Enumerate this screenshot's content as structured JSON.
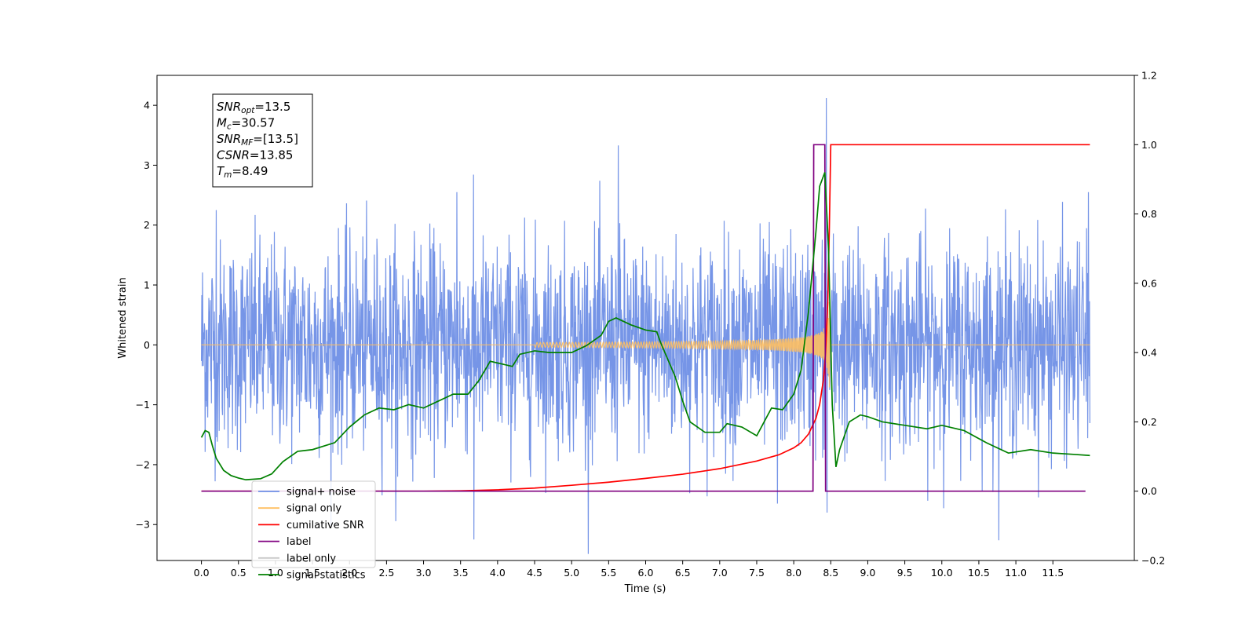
{
  "chart_data": {
    "type": "line",
    "xlabel": "Time (s)",
    "ylabel_left": "Whitened strain",
    "xlim": [
      -0.6,
      12.6
    ],
    "ylim_left": [
      -3.6,
      4.5
    ],
    "ylim_right": [
      -0.2,
      1.2
    ],
    "x_ticks": [
      0.0,
      0.5,
      1.0,
      1.5,
      2.0,
      2.5,
      3.0,
      3.5,
      4.0,
      4.5,
      5.0,
      5.5,
      6.0,
      6.5,
      7.0,
      7.5,
      8.0,
      8.5,
      9.0,
      9.5,
      10.0,
      10.5,
      11.0,
      11.5
    ],
    "x_tick_labels": [
      "0.0",
      "0.5",
      "1.0",
      "1.5",
      "2.0",
      "2.5",
      "3.0",
      "3.5",
      "4.0",
      "4.5",
      "5.0",
      "5.5",
      "6.0",
      "6.5",
      "7.0",
      "7.5",
      "8.0",
      "8.5",
      "9.0",
      "9.5",
      "10.0",
      "10.5",
      "11.0",
      "11.5"
    ],
    "y_left_ticks": [
      -3,
      -2,
      -1,
      0,
      1,
      2,
      3,
      4
    ],
    "y_left_tick_labels": [
      "−3",
      "−2",
      "−1",
      "0",
      "1",
      "2",
      "3",
      "4"
    ],
    "y_right_ticks": [
      -0.2,
      0.0,
      0.2,
      0.4,
      0.6,
      0.8,
      1.0,
      1.2
    ],
    "y_right_tick_labels": [
      "−0.2",
      "0.0",
      "0.2",
      "0.4",
      "0.6",
      "0.8",
      "1.0",
      "1.2"
    ],
    "legend_placement": "lower-left",
    "annotation": {
      "lines": [
        {
          "var": "SNR",
          "sub": "opt",
          "value": "=13.5"
        },
        {
          "var": "M",
          "sub": "c",
          "value": "=30.57"
        },
        {
          "var": "SNR",
          "sub": "MF",
          "value": "=[13.5]"
        },
        {
          "var": "CSNR",
          "sub": "",
          "value": "=13.85"
        },
        {
          "var": "T",
          "sub": "m",
          "value": "=8.49"
        }
      ]
    },
    "series": [
      {
        "name": "signal+ noise",
        "axis": "left",
        "color": "#6f8fe6",
        "kind": "noise",
        "x_range": [
          0.0,
          12.0
        ],
        "typical_amplitude": 1.4,
        "spikes": [
          {
            "x": 5.63,
            "y": 3.33
          },
          {
            "x": 8.44,
            "y": 4.12
          },
          {
            "x": 3.68,
            "y": -3.25
          },
          {
            "x": 8.45,
            "y": -2.8
          },
          {
            "x": 11.98,
            "y": 2.55
          },
          {
            "x": 3.45,
            "y": 2.55
          },
          {
            "x": 2.65,
            "y": -2.2
          },
          {
            "x": 7.78,
            "y": -2.65
          },
          {
            "x": 0.2,
            "y": 2.25
          }
        ]
      },
      {
        "name": "signal only",
        "axis": "left",
        "color": "#ffbf60",
        "kind": "chirp",
        "x_range": [
          0.0,
          12.0
        ],
        "merger_time": 8.49
      },
      {
        "name": "cumilative SNR",
        "axis": "right",
        "color": "#ff0000",
        "points": [
          [
            0.0,
            0.0
          ],
          [
            3.0,
            0.0
          ],
          [
            3.5,
            0.001
          ],
          [
            4.0,
            0.004
          ],
          [
            4.5,
            0.009
          ],
          [
            5.0,
            0.017
          ],
          [
            5.5,
            0.026
          ],
          [
            6.0,
            0.037
          ],
          [
            6.5,
            0.049
          ],
          [
            7.0,
            0.065
          ],
          [
            7.5,
            0.087
          ],
          [
            7.8,
            0.105
          ],
          [
            8.0,
            0.125
          ],
          [
            8.1,
            0.14
          ],
          [
            8.2,
            0.165
          ],
          [
            8.3,
            0.21
          ],
          [
            8.35,
            0.25
          ],
          [
            8.4,
            0.32
          ],
          [
            8.43,
            0.4
          ],
          [
            8.46,
            0.55
          ],
          [
            8.48,
            0.75
          ],
          [
            8.5,
            1.0
          ],
          [
            12.0,
            1.0
          ]
        ]
      },
      {
        "name": "label",
        "axis": "right",
        "color": "#800080",
        "points": [
          [
            0.0,
            0.0
          ],
          [
            8.26,
            0.0
          ],
          [
            8.27,
            1.0
          ],
          [
            8.42,
            1.0
          ],
          [
            8.43,
            0.0
          ],
          [
            8.5,
            0.0
          ],
          [
            8.51,
            -0.0
          ],
          [
            11.94,
            0.0
          ]
        ]
      },
      {
        "name": "label only",
        "legend_only": true,
        "color": "#c8c8c8"
      },
      {
        "name": "signal statistics",
        "axis": "right",
        "color": "#008000",
        "points": [
          [
            0.0,
            0.155
          ],
          [
            0.05,
            0.175
          ],
          [
            0.1,
            0.17
          ],
          [
            0.15,
            0.13
          ],
          [
            0.2,
            0.095
          ],
          [
            0.3,
            0.06
          ],
          [
            0.4,
            0.045
          ],
          [
            0.5,
            0.038
          ],
          [
            0.6,
            0.033
          ],
          [
            0.8,
            0.036
          ],
          [
            0.95,
            0.05
          ],
          [
            1.1,
            0.085
          ],
          [
            1.3,
            0.115
          ],
          [
            1.5,
            0.12
          ],
          [
            1.8,
            0.14
          ],
          [
            2.0,
            0.185
          ],
          [
            2.2,
            0.22
          ],
          [
            2.4,
            0.24
          ],
          [
            2.6,
            0.235
          ],
          [
            2.8,
            0.25
          ],
          [
            3.0,
            0.24
          ],
          [
            3.2,
            0.26
          ],
          [
            3.4,
            0.28
          ],
          [
            3.6,
            0.28
          ],
          [
            3.75,
            0.32
          ],
          [
            3.9,
            0.375
          ],
          [
            4.0,
            0.37
          ],
          [
            4.2,
            0.36
          ],
          [
            4.3,
            0.395
          ],
          [
            4.5,
            0.405
          ],
          [
            4.7,
            0.4
          ],
          [
            5.0,
            0.4
          ],
          [
            5.2,
            0.42
          ],
          [
            5.4,
            0.45
          ],
          [
            5.5,
            0.49
          ],
          [
            5.6,
            0.5
          ],
          [
            5.8,
            0.48
          ],
          [
            6.0,
            0.465
          ],
          [
            6.15,
            0.46
          ],
          [
            6.2,
            0.43
          ],
          [
            6.4,
            0.33
          ],
          [
            6.5,
            0.26
          ],
          [
            6.6,
            0.2
          ],
          [
            6.8,
            0.17
          ],
          [
            7.0,
            0.17
          ],
          [
            7.1,
            0.195
          ],
          [
            7.3,
            0.185
          ],
          [
            7.5,
            0.16
          ],
          [
            7.6,
            0.2
          ],
          [
            7.7,
            0.24
          ],
          [
            7.85,
            0.235
          ],
          [
            8.0,
            0.28
          ],
          [
            8.1,
            0.35
          ],
          [
            8.2,
            0.52
          ],
          [
            8.3,
            0.75
          ],
          [
            8.35,
            0.88
          ],
          [
            8.42,
            0.92
          ],
          [
            8.47,
            0.7
          ],
          [
            8.52,
            0.25
          ],
          [
            8.57,
            0.07
          ],
          [
            8.62,
            0.12
          ],
          [
            8.75,
            0.2
          ],
          [
            8.9,
            0.22
          ],
          [
            9.0,
            0.215
          ],
          [
            9.2,
            0.2
          ],
          [
            9.5,
            0.19
          ],
          [
            9.8,
            0.18
          ],
          [
            10.0,
            0.19
          ],
          [
            10.3,
            0.175
          ],
          [
            10.6,
            0.14
          ],
          [
            10.9,
            0.11
          ],
          [
            11.2,
            0.12
          ],
          [
            11.5,
            0.11
          ],
          [
            11.8,
            0.106
          ],
          [
            12.0,
            0.103
          ]
        ]
      }
    ]
  }
}
